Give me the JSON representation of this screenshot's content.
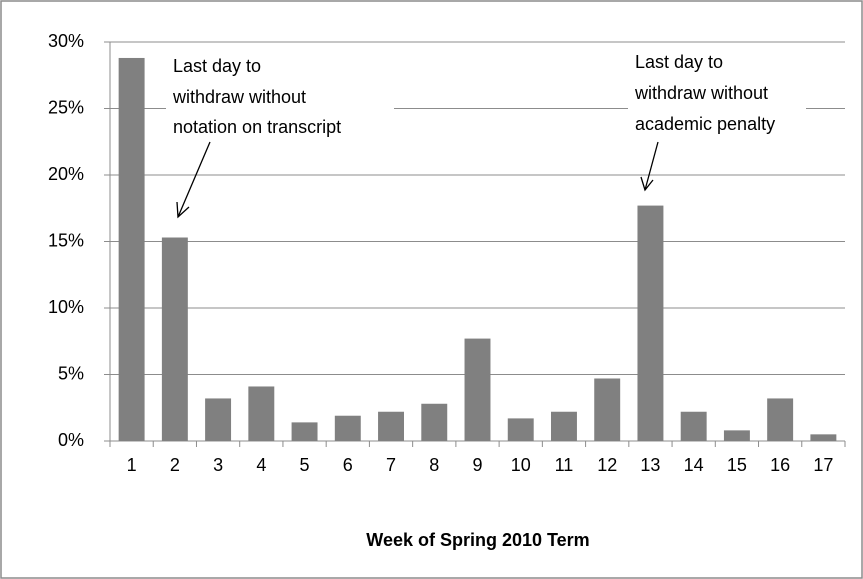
{
  "chart_data": {
    "type": "bar",
    "x_label": "Week of Spring 2010 Term",
    "categories": [
      "1",
      "2",
      "3",
      "4",
      "5",
      "6",
      "7",
      "8",
      "9",
      "10",
      "11",
      "12",
      "13",
      "14",
      "15",
      "16",
      "17"
    ],
    "values": [
      28.8,
      15.3,
      3.2,
      4.1,
      1.4,
      1.9,
      2.2,
      2.8,
      7.7,
      1.7,
      2.2,
      4.7,
      17.7,
      2.2,
      0.8,
      3.2,
      0.5
    ],
    "color": "#808080",
    "ylim": [
      0,
      30
    ],
    "yticks": [
      {
        "value": 0,
        "label": "0%"
      },
      {
        "value": 5,
        "label": "5%"
      },
      {
        "value": 10,
        "label": "10%"
      },
      {
        "value": 15,
        "label": "15%"
      },
      {
        "value": 20,
        "label": "20%"
      },
      {
        "value": 25,
        "label": "25%"
      },
      {
        "value": 30,
        "label": "30%"
      }
    ],
    "grid": true,
    "annotations": [
      {
        "lines": [
          "Last day to",
          "withdraw without",
          "notation on transcript"
        ]
      },
      {
        "lines": [
          "Last day to",
          "withdraw without",
          "academic penalty"
        ]
      }
    ]
  }
}
